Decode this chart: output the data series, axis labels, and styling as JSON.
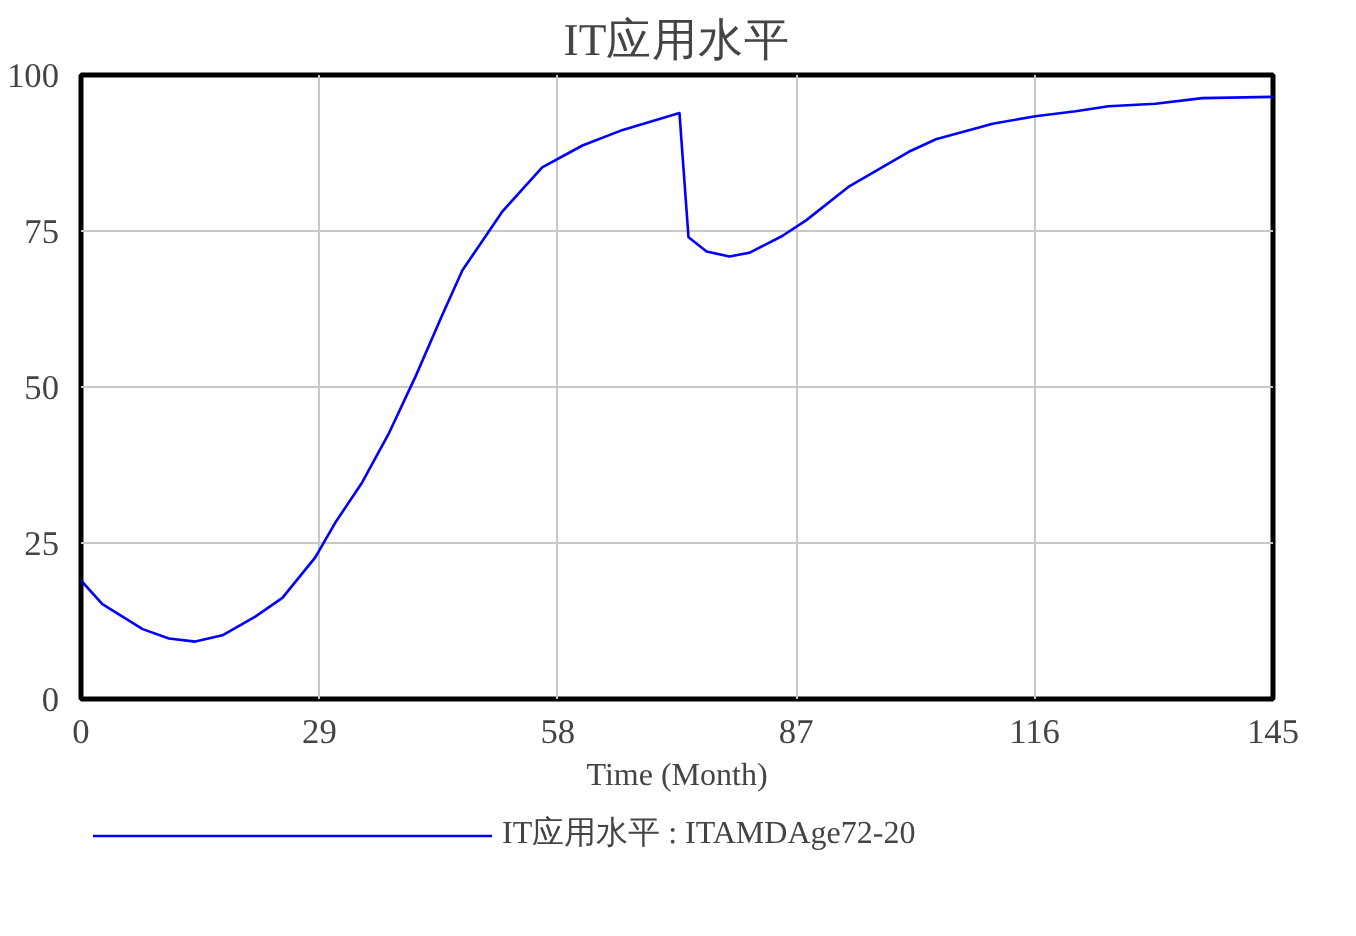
{
  "chart_data": {
    "type": "line",
    "title": "IT应用水平",
    "xlabel": "Time (Month)",
    "x": [
      0,
      2.6,
      7.5,
      10.7,
      13.9,
      17.2,
      21.2,
      24.5,
      28.5,
      30.9,
      34.2,
      37.5,
      40.7,
      44.0,
      46.4,
      51.3,
      56.1,
      61.0,
      65.9,
      72.8,
      73.9,
      76.1,
      78.9,
      81.3,
      85.3,
      88.2,
      93.5,
      100.7,
      104,
      110.9,
      116.1,
      121,
      125,
      130.7,
      136.4,
      145
    ],
    "series": [
      {
        "name": "IT应用水平 : ITAMDAge72-20",
        "color": "#0000ff",
        "values": [
          19,
          15.2,
          11.2,
          9.7,
          9.2,
          10.2,
          13.2,
          16.2,
          22.7,
          28.2,
          34.7,
          42.7,
          51.7,
          61.7,
          68.7,
          78.2,
          85.2,
          88.7,
          91.2,
          93.9,
          74.0,
          71.7,
          70.9,
          71.5,
          74.2,
          76.7,
          82.2,
          87.7,
          89.7,
          92.2,
          93.4,
          94.2,
          95,
          95.4,
          96.3,
          96.5
        ]
      }
    ],
    "xlim": [
      0,
      145
    ],
    "ylim": [
      0,
      100
    ],
    "xticks": [
      0,
      29,
      58,
      87,
      116,
      145
    ],
    "yticks": [
      0,
      25,
      50,
      75,
      100
    ],
    "grid": true,
    "legend": "bottom",
    "line_style": "solid"
  }
}
